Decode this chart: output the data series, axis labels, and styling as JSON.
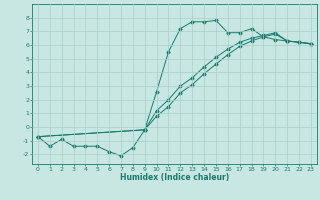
{
  "xlabel": "Humidex (Indice chaleur)",
  "xlim": [
    -0.5,
    23.5
  ],
  "ylim": [
    -2.7,
    9.0
  ],
  "xticks": [
    0,
    1,
    2,
    3,
    4,
    5,
    6,
    7,
    8,
    9,
    10,
    11,
    12,
    13,
    14,
    15,
    16,
    17,
    18,
    19,
    20,
    21,
    22,
    23
  ],
  "yticks": [
    -2,
    -1,
    0,
    1,
    2,
    3,
    4,
    5,
    6,
    7,
    8
  ],
  "line_color": "#1a7a6e",
  "bg_color": "#c8e6e2",
  "grid_color": "#aacfcb",
  "line1_x": [
    0,
    1,
    2,
    3,
    4,
    5,
    6,
    7,
    8,
    9,
    10,
    11,
    12,
    13,
    14,
    15,
    16,
    17,
    18,
    19,
    20,
    21,
    22,
    23
  ],
  "line1_y": [
    -0.7,
    -1.4,
    -0.9,
    -1.4,
    -1.4,
    -1.4,
    -1.8,
    -2.1,
    -1.5,
    -0.2,
    2.6,
    5.5,
    7.2,
    7.7,
    7.7,
    7.8,
    6.9,
    6.9,
    7.2,
    6.6,
    6.4,
    6.3,
    6.2,
    6.1
  ],
  "line2_x": [
    0,
    9,
    10,
    11,
    12,
    13,
    14,
    15,
    16,
    17,
    18,
    19,
    20,
    21,
    22,
    23
  ],
  "line2_y": [
    -0.7,
    -0.2,
    0.8,
    1.5,
    2.5,
    3.1,
    3.9,
    4.6,
    5.3,
    5.9,
    6.3,
    6.6,
    6.8,
    6.3,
    6.2,
    6.1
  ],
  "line3_x": [
    0,
    9,
    10,
    11,
    12,
    13,
    14,
    15,
    16,
    17,
    18,
    19,
    20,
    21,
    22,
    23
  ],
  "line3_y": [
    -0.7,
    -0.2,
    1.2,
    2.0,
    3.0,
    3.6,
    4.4,
    5.1,
    5.7,
    6.2,
    6.5,
    6.7,
    6.9,
    6.3,
    6.2,
    6.1
  ]
}
